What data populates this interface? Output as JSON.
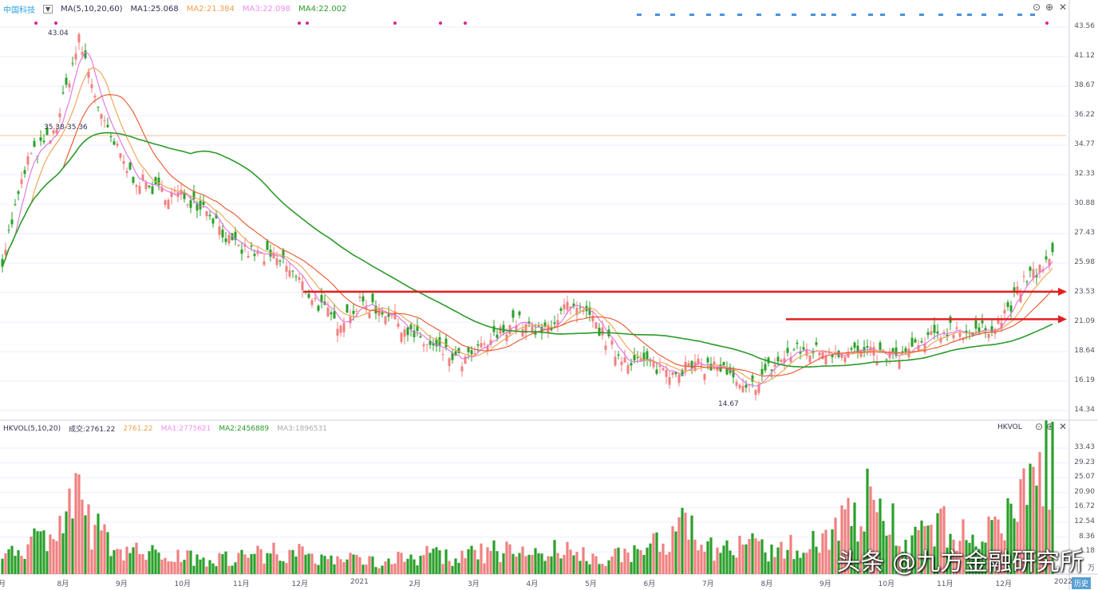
{
  "header": {
    "stock_name": "中国科技",
    "ma_params": "MA(5,10,20,60)",
    "ma1": "MA1:25.068",
    "ma2": "MA2:21.384",
    "ma3": "MA3:22.098",
    "ma4": "MA4:22.002"
  },
  "volume_header": {
    "params": "HKVOL(5,10,20)",
    "vol": "成交:2761.22",
    "v1": "2761.22",
    "v2": "MA1:2775621",
    "v3": "MA2:2456889",
    "v4": "MA3:1896531",
    "tag": "HKVOL"
  },
  "annotations": {
    "high": "43.04",
    "prev": "35.38-35.36",
    "low": "14.67"
  },
  "watermark": "头条 @九方金融研究所",
  "corner_button": "历史",
  "colors": {
    "up": "#f08080",
    "down": "#2aa02a",
    "ma1": "#e8552a",
    "ma2": "#f0a050",
    "ma3": "#e070e0",
    "ma4": "#2a9a2a",
    "hline": "#e02020",
    "accent": "#c020c0"
  },
  "chart_data": [
    {
      "type": "candlestick",
      "price_axis_ticks": [
        "43.56",
        "41.12",
        "38.67",
        "36.22",
        "34.77",
        "32.33",
        "30.88",
        "27.43",
        "25.98",
        "23.53",
        "21.09",
        "18.64",
        "16.19",
        "14.34"
      ],
      "ylim": [
        14.34,
        43.56
      ],
      "x_ticks": [
        "月",
        "8月",
        "9月",
        "10月",
        "11月",
        "12月",
        "2021",
        "2月",
        "3月",
        "4月",
        "5月",
        "6月",
        "7月",
        "8月",
        "9月",
        "10月",
        "11月",
        "12月",
        "2022"
      ],
      "close_trend": [
        25.9,
        33.5,
        35.3,
        42.6,
        35.9,
        32.3,
        31.1,
        30.7,
        29.8,
        26.8,
        26.2,
        25.6,
        23.2,
        21.0,
        22.5,
        21.9,
        20.1,
        18.9,
        18.0,
        19.5,
        21.3,
        20.1,
        22.2,
        21.3,
        18.6,
        18.0,
        17.4,
        17.7,
        17.7,
        15.6,
        17.7,
        18.9,
        18.9,
        18.9,
        18.6,
        18.4,
        19.5,
        20.7,
        20.1,
        21.3,
        24.4,
        25.9
      ],
      "horizontal_lines": [
        23.4,
        21.3,
        35.3
      ]
    },
    {
      "type": "bar",
      "volume_axis_ticks": [
        "33.43",
        "29.23",
        "25.07",
        "20.90",
        "16.72",
        "12.54",
        "8.36",
        "4.18",
        "万"
      ],
      "ylim": [
        0,
        37
      ],
      "volume_trend": [
        6,
        8,
        10,
        18,
        9,
        6,
        5,
        5,
        4,
        4,
        5,
        6,
        5,
        4,
        4,
        3,
        4,
        5,
        4,
        5,
        6,
        5,
        6,
        5,
        4,
        5,
        7,
        12,
        8,
        6,
        7,
        5,
        8,
        10,
        15,
        20,
        8,
        10,
        12,
        8,
        12,
        22,
        30
      ]
    }
  ]
}
